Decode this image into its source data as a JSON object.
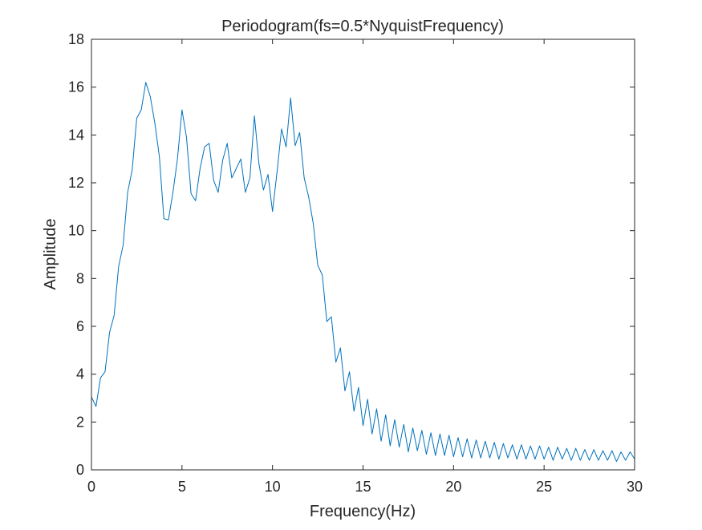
{
  "chart_data": {
    "type": "line",
    "title": "Periodogram(fs=0.5*NyquistFrequency)",
    "xlabel": "Frequency(Hz)",
    "ylabel": "Amplitude",
    "xlim": [
      0,
      30
    ],
    "ylim": [
      0,
      18
    ],
    "xticks": [
      0,
      5,
      10,
      15,
      20,
      25,
      30
    ],
    "yticks": [
      0,
      2,
      4,
      6,
      8,
      10,
      12,
      14,
      16,
      18
    ],
    "xtick_labels": [
      "0",
      "5",
      "10",
      "15",
      "20",
      "25",
      "30"
    ],
    "ytick_labels": [
      "0",
      "2",
      "4",
      "6",
      "8",
      "10",
      "12",
      "14",
      "16",
      "18"
    ],
    "grid": false,
    "line_color": "#0072BD",
    "axis_color": "#262626",
    "series": [
      {
        "x": [
          0,
          0.25,
          0.5,
          0.75,
          1.0,
          1.25,
          1.5,
          1.75,
          2.0,
          2.25,
          2.5,
          2.75,
          3.0,
          3.25,
          3.5,
          3.75,
          4.0,
          4.25,
          4.5,
          4.75,
          5.0,
          5.25,
          5.5,
          5.75,
          6.0,
          6.25,
          6.5,
          6.75,
          7.0,
          7.25,
          7.5,
          7.75,
          8.0,
          8.25,
          8.5,
          8.75,
          9.0,
          9.25,
          9.5,
          9.75,
          10.0,
          10.25,
          10.5,
          10.75,
          11.0,
          11.25,
          11.5,
          11.75,
          12.0,
          12.25,
          12.5,
          12.75,
          13.0,
          13.25,
          13.5,
          13.75,
          14.0,
          14.25,
          14.5,
          14.75,
          15.0,
          15.25,
          15.5,
          15.75,
          16.0,
          16.25,
          16.5,
          16.75,
          17.0,
          17.25,
          17.5,
          17.75,
          18.0,
          18.25,
          18.5,
          18.75,
          19.0,
          19.25,
          19.5,
          19.75,
          20.0,
          20.25,
          20.5,
          20.75,
          21.0,
          21.25,
          21.5,
          21.75,
          22.0,
          22.25,
          22.5,
          22.75,
          23.0,
          23.25,
          23.5,
          23.75,
          24.0,
          24.25,
          24.5,
          24.75,
          25.0,
          25.25,
          25.5,
          25.75,
          26.0,
          26.25,
          26.5,
          26.75,
          27.0,
          27.25,
          27.5,
          27.75,
          28.0,
          28.25,
          28.5,
          28.75,
          29.0,
          29.25,
          29.5,
          29.75,
          30.0
        ],
        "y": [
          3.05,
          2.65,
          3.85,
          4.1,
          5.75,
          6.45,
          8.5,
          9.4,
          11.6,
          12.55,
          14.7,
          15.05,
          16.2,
          15.6,
          14.5,
          13.1,
          10.5,
          10.45,
          11.6,
          13.0,
          15.05,
          13.9,
          11.55,
          11.25,
          12.6,
          13.5,
          13.65,
          12.1,
          11.6,
          12.95,
          13.65,
          12.2,
          12.6,
          13.0,
          11.6,
          12.2,
          14.8,
          12.8,
          11.7,
          12.35,
          10.8,
          12.45,
          14.25,
          13.5,
          15.55,
          13.55,
          14.1,
          12.2,
          11.4,
          10.3,
          8.55,
          8.15,
          6.2,
          6.4,
          4.5,
          5.1,
          3.3,
          4.1,
          2.45,
          3.45,
          1.85,
          2.95,
          1.5,
          2.55,
          1.2,
          2.3,
          1.0,
          2.1,
          0.95,
          1.9,
          0.75,
          1.75,
          0.8,
          1.65,
          0.65,
          1.55,
          0.6,
          1.5,
          0.6,
          1.45,
          0.55,
          1.35,
          0.55,
          1.3,
          0.5,
          1.25,
          0.5,
          1.2,
          0.5,
          1.15,
          0.45,
          1.1,
          0.5,
          1.05,
          0.45,
          1.05,
          0.45,
          1.0,
          0.45,
          1.0,
          0.45,
          0.95,
          0.4,
          0.95,
          0.45,
          0.9,
          0.4,
          0.9,
          0.4,
          0.85,
          0.4,
          0.85,
          0.4,
          0.8,
          0.4,
          0.8,
          0.35,
          0.75,
          0.4,
          0.75,
          0.45
        ]
      }
    ]
  }
}
